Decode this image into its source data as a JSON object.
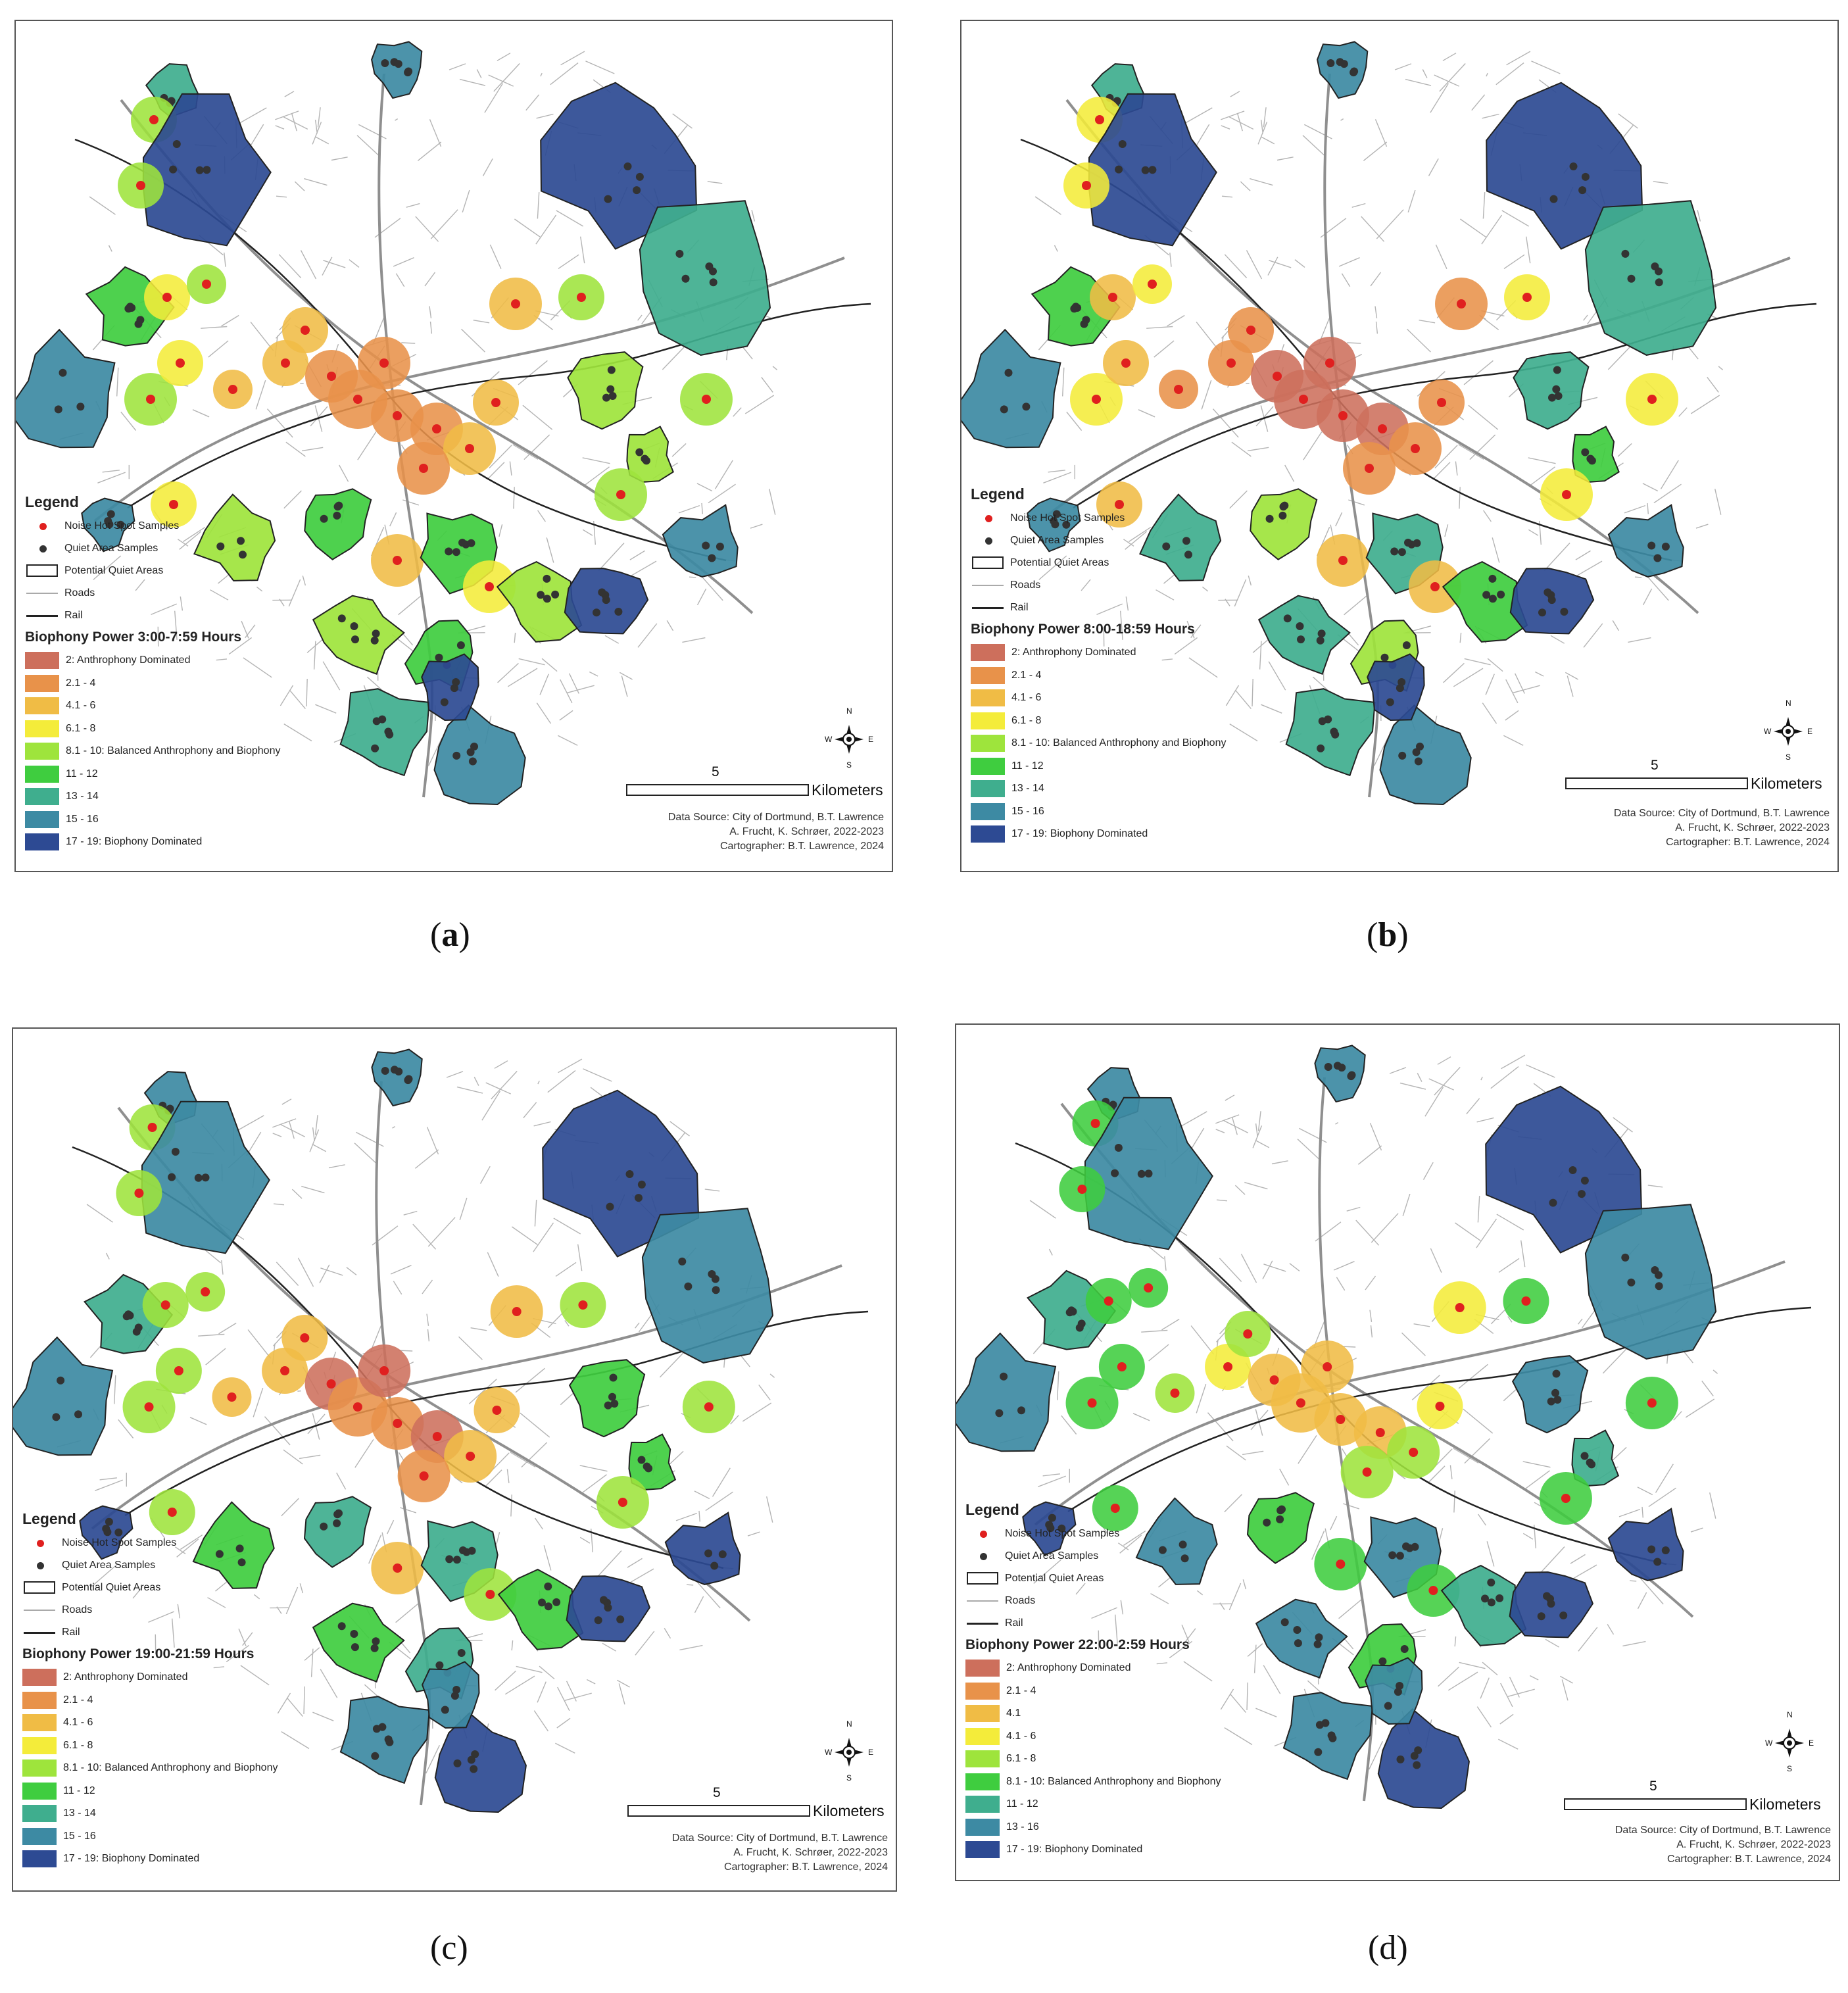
{
  "panels": [
    {
      "caption_open": "(",
      "caption_letter": "a",
      "caption_close": ")",
      "legend": {
        "title": "Legend",
        "noise_label": "Noise Hot Spot Samples",
        "quiet_samples_label": "Quiet Area Samples",
        "potential_label": "Potential Quiet Areas",
        "roads_label": "Roads",
        "rail_label": "Rail",
        "bp_title": "Biophony Power 3:00-7:59 Hours",
        "classes": [
          {
            "label": "2: Anthrophony Dominated",
            "color": "#cd6f5c"
          },
          {
            "label": "2.1 - 4",
            "color": "#e8924a"
          },
          {
            "label": "4.1 - 6",
            "color": "#f0bc45"
          },
          {
            "label": "6.1 - 8",
            "color": "#f4ec3a"
          },
          {
            "label": "8.1 - 10: Balanced Anthrophony and Biophony",
            "color": "#9ee43c"
          },
          {
            "label": "11 - 12",
            "color": "#3fcd3f"
          },
          {
            "label": "13 - 14",
            "color": "#3fae8e"
          },
          {
            "label": "15 - 16",
            "color": "#3d8aa3"
          },
          {
            "label": "17 - 19: Biophony Dominated",
            "color": "#2d4a93"
          }
        ]
      },
      "scale_number": "5",
      "scale_unit": "Kilometers",
      "credit_lines": [
        "Data Source: City of Dortmund, B.T. Lawrence",
        "A. Frucht, K. Schrøer, 2022-2023",
        "Cartographer: B.T. Lawrence, 2024"
      ],
      "compass": {
        "n": "N",
        "s": "S",
        "e": "E",
        "w": "W"
      }
    },
    {
      "caption_open": "(",
      "caption_letter": "b",
      "caption_close": ")",
      "legend": {
        "title": "Legend",
        "noise_label": "Noise Hot Spot Samples",
        "quiet_samples_label": "Quiet Area Samples",
        "potential_label": "Potential Quiet Areas",
        "roads_label": "Roads",
        "rail_label": "Rail",
        "bp_title": "Biophony Power 8:00-18:59 Hours",
        "classes": [
          {
            "label": "2: Anthrophony Dominated",
            "color": "#cd6f5c"
          },
          {
            "label": "2.1 - 4",
            "color": "#e8924a"
          },
          {
            "label": "4.1 - 6",
            "color": "#f0bc45"
          },
          {
            "label": "6.1 - 8",
            "color": "#f4ec3a"
          },
          {
            "label": "8.1 - 10: Balanced Anthrophony and Biophony",
            "color": "#9ee43c"
          },
          {
            "label": "11 - 12",
            "color": "#3fcd3f"
          },
          {
            "label": "13 - 14",
            "color": "#3fae8e"
          },
          {
            "label": "15 - 16",
            "color": "#3d8aa3"
          },
          {
            "label": "17 - 19: Biophony Dominated",
            "color": "#2d4a93"
          }
        ]
      },
      "scale_number": "5",
      "scale_unit": "Kilometers",
      "credit_lines": [
        "Data Source: City of Dortmund, B.T. Lawrence",
        "A. Frucht, K. Schrøer, 2022-2023",
        "Cartographer: B.T. Lawrence, 2024"
      ],
      "compass": {
        "n": "N",
        "s": "S",
        "e": "E",
        "w": "W"
      }
    },
    {
      "caption_open": "(",
      "caption_letter": "c",
      "caption_close": ")",
      "legend": {
        "title": "Legend",
        "noise_label": "Noise Hot Spot Samples",
        "quiet_samples_label": "Quiet Area Samples",
        "potential_label": "Potential Quiet Areas",
        "roads_label": "Roads",
        "rail_label": "Rail",
        "bp_title": "Biophony Power 19:00-21:59 Hours",
        "classes": [
          {
            "label": "2: Anthrophony Dominated",
            "color": "#cd6f5c"
          },
          {
            "label": "2.1 - 4",
            "color": "#e8924a"
          },
          {
            "label": "4.1 - 6",
            "color": "#f0bc45"
          },
          {
            "label": "6.1 - 8",
            "color": "#f4ec3a"
          },
          {
            "label": "8.1 - 10: Balanced Anthrophony and Biophony",
            "color": "#9ee43c"
          },
          {
            "label": "11 - 12",
            "color": "#3fcd3f"
          },
          {
            "label": "13 - 14",
            "color": "#3fae8e"
          },
          {
            "label": "15 - 16",
            "color": "#3d8aa3"
          },
          {
            "label": "17 - 19: Biophony Dominated",
            "color": "#2d4a93"
          }
        ]
      },
      "scale_number": "5",
      "scale_unit": "Kilometers",
      "credit_lines": [
        "Data Source: City of Dortmund, B.T. Lawrence",
        "A. Frucht, K. Schrøer, 2022-2023",
        "Cartographer: B.T. Lawrence, 2024"
      ],
      "compass": {
        "n": "N",
        "s": "S",
        "e": "E",
        "w": "W"
      }
    },
    {
      "caption_open": "(",
      "caption_letter": "d",
      "caption_close": ")",
      "legend": {
        "title": "Legend",
        "noise_label": "Noise Hot Spot Samples",
        "quiet_samples_label": "Quiet Area Samples",
        "potential_label": "Potential Quiet Areas",
        "roads_label": "Roads",
        "rail_label": "Rail",
        "bp_title": "Biophony Power 22:00-2:59 Hours",
        "classes": [
          {
            "label": "2: Anthrophony Dominated",
            "color": "#cd6f5c"
          },
          {
            "label": "2.1 - 4",
            "color": "#e8924a"
          },
          {
            "label": "4.1",
            "color": "#f0bc45"
          },
          {
            "label": "4.1 - 6",
            "color": "#f4ec3a"
          },
          {
            "label": "6.1 - 8",
            "color": "#9ee43c"
          },
          {
            "label": "8.1 - 10: Balanced Anthrophony and Biophony",
            "color": "#3fcd3f"
          },
          {
            "label": "11 - 12",
            "color": "#3fae8e"
          },
          {
            "label": "13 - 16",
            "color": "#3d8aa3"
          },
          {
            "label": "17 - 19: Biophony Dominated",
            "color": "#2d4a93"
          }
        ]
      },
      "scale_number": "5",
      "scale_unit": "Kilometers",
      "credit_lines": [
        "Data Source: City of Dortmund, B.T. Lawrence",
        "A. Frucht, K. Schrøer, 2022-2023",
        "Cartographer: B.T. Lawrence, 2024"
      ],
      "compass": {
        "n": "N",
        "s": "S",
        "e": "E",
        "w": "W"
      }
    }
  ],
  "colors": {
    "noise_dot": "#e0201f",
    "quiet_dot": "#333333",
    "roads": "#b4b4b4",
    "rail": "#222222"
  }
}
